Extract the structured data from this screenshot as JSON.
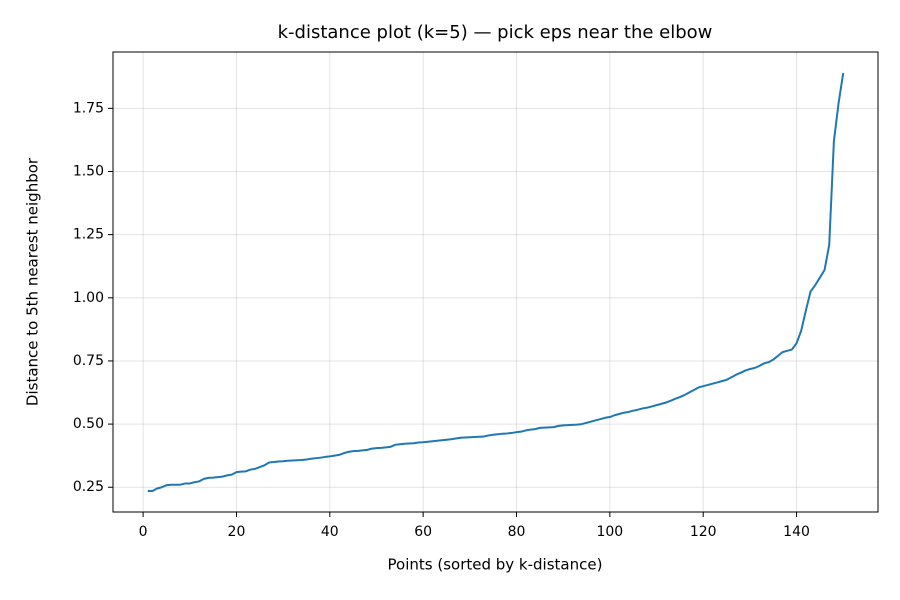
{
  "chart_data": {
    "type": "line",
    "title": "k-distance plot (k=5) — pick eps near the elbow",
    "xlabel": "Points (sorted by k-distance)",
    "ylabel": "Distance to 5th nearest neighbor",
    "x": [
      1,
      2,
      3,
      4,
      5,
      6,
      7,
      8,
      9,
      10,
      11,
      12,
      13,
      14,
      15,
      16,
      17,
      18,
      19,
      20,
      21,
      22,
      23,
      24,
      25,
      26,
      27,
      28,
      29,
      30,
      31,
      32,
      33,
      34,
      35,
      36,
      37,
      38,
      39,
      40,
      41,
      42,
      43,
      44,
      45,
      46,
      47,
      48,
      49,
      50,
      51,
      52,
      53,
      54,
      55,
      56,
      57,
      58,
      59,
      60,
      61,
      62,
      63,
      64,
      65,
      66,
      67,
      68,
      69,
      70,
      71,
      72,
      73,
      74,
      75,
      76,
      77,
      78,
      79,
      80,
      81,
      82,
      83,
      84,
      85,
      86,
      87,
      88,
      89,
      90,
      91,
      92,
      93,
      94,
      95,
      96,
      97,
      98,
      99,
      100,
      101,
      102,
      103,
      104,
      105,
      106,
      107,
      108,
      109,
      110,
      111,
      112,
      113,
      114,
      115,
      116,
      117,
      118,
      119,
      120,
      121,
      122,
      123,
      124,
      125,
      126,
      127,
      128,
      129,
      130,
      131,
      132,
      133,
      134,
      135,
      136,
      137,
      138,
      139,
      140,
      141,
      142,
      143,
      144,
      145,
      146,
      147,
      148,
      149,
      150
    ],
    "series": [
      {
        "color": "#1f77b4",
        "values": [
          0.235,
          0.235,
          0.245,
          0.25,
          0.258,
          0.26,
          0.26,
          0.26,
          0.265,
          0.265,
          0.27,
          0.273,
          0.283,
          0.287,
          0.288,
          0.29,
          0.292,
          0.297,
          0.3,
          0.31,
          0.312,
          0.313,
          0.32,
          0.323,
          0.33,
          0.337,
          0.348,
          0.35,
          0.352,
          0.353,
          0.355,
          0.356,
          0.357,
          0.358,
          0.36,
          0.363,
          0.365,
          0.367,
          0.37,
          0.372,
          0.375,
          0.378,
          0.385,
          0.39,
          0.393,
          0.394,
          0.396,
          0.398,
          0.403,
          0.405,
          0.406,
          0.408,
          0.41,
          0.418,
          0.42,
          0.422,
          0.423,
          0.424,
          0.427,
          0.428,
          0.43,
          0.432,
          0.434,
          0.436,
          0.438,
          0.44,
          0.443,
          0.446,
          0.447,
          0.448,
          0.449,
          0.45,
          0.451,
          0.455,
          0.458,
          0.46,
          0.462,
          0.463,
          0.465,
          0.468,
          0.47,
          0.475,
          0.478,
          0.48,
          0.485,
          0.486,
          0.487,
          0.488,
          0.493,
          0.495,
          0.496,
          0.497,
          0.498,
          0.5,
          0.505,
          0.51,
          0.515,
          0.52,
          0.525,
          0.528,
          0.535,
          0.54,
          0.545,
          0.548,
          0.553,
          0.557,
          0.562,
          0.565,
          0.57,
          0.575,
          0.58,
          0.585,
          0.592,
          0.6,
          0.607,
          0.615,
          0.625,
          0.635,
          0.645,
          0.65,
          0.655,
          0.66,
          0.665,
          0.67,
          0.675,
          0.685,
          0.695,
          0.703,
          0.712,
          0.718,
          0.722,
          0.73,
          0.74,
          0.745,
          0.755,
          0.77,
          0.785,
          0.79,
          0.795,
          0.82,
          0.87,
          0.95,
          1.025,
          1.05,
          1.08,
          1.11,
          1.21,
          1.62,
          1.77,
          1.89
        ]
      }
    ],
    "xlim": [
      -6.45,
      157.45
    ],
    "ylim": [
      0.152,
      1.973
    ],
    "xticks": [
      0,
      20,
      40,
      60,
      80,
      100,
      120,
      140
    ],
    "yticks": [
      0.25,
      {
        "value": 0.5,
        "label": "0.50"
      },
      0.75,
      {
        "value": 1,
        "label": "1.00"
      },
      1.25,
      {
        "value": 1.5,
        "label": "1.50"
      },
      1.75
    ],
    "grid": true
  }
}
